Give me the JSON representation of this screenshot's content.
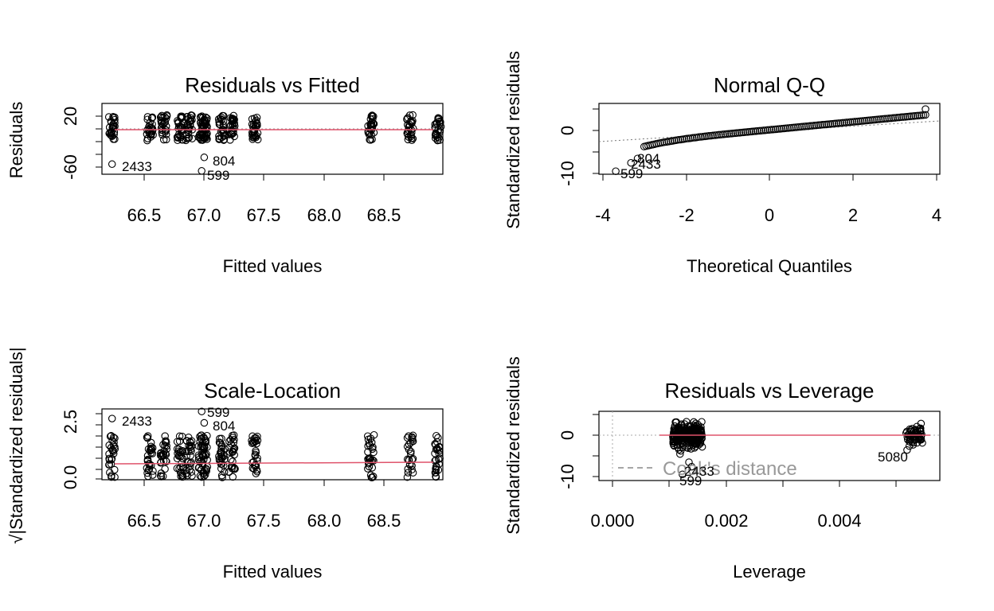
{
  "chart_data": [
    {
      "type": "scatter",
      "title": "Residuals vs Fitted",
      "xlabel": "Fitted values",
      "ylabel": "Residuals",
      "xlim": [
        66.2,
        68.9
      ],
      "ylim": [
        -70,
        35
      ],
      "xticks": [
        "66.5",
        "67.0",
        "67.5",
        "68.0",
        "68.5"
      ],
      "yticks": [
        "-60",
        "20"
      ],
      "columns_x": [
        66.28,
        66.58,
        66.69,
        66.82,
        66.89,
        66.99,
        67.01,
        67.15,
        67.23,
        67.41,
        68.33,
        68.64,
        68.86
      ],
      "point_spread_y": [
        -20,
        18
      ],
      "outliers": [
        {
          "x": 66.28,
          "y": -55,
          "label": "2433"
        },
        {
          "x": 67.01,
          "y": -45,
          "label": "804"
        },
        {
          "x": 66.99,
          "y": -65,
          "label": "599"
        }
      ],
      "smooth_line": [
        [
          66.28,
          2
        ],
        [
          67.0,
          2.2
        ],
        [
          68.0,
          1.8
        ],
        [
          68.86,
          1.8
        ]
      ]
    },
    {
      "type": "scatter",
      "title": "Normal Q-Q",
      "xlabel": "Theoretical Quantiles",
      "ylabel": "Standardized residuals",
      "xlim": [
        -4.2,
        4.1
      ],
      "ylim": [
        -10.2,
        6
      ],
      "xticks": [
        "-4",
        "-2",
        "0",
        "2",
        "4"
      ],
      "yticks": [
        "-10",
        "0"
      ],
      "outliers": [
        {
          "x": -3.79,
          "y": -9.5,
          "label": "599"
        },
        {
          "x": -3.42,
          "y": -7.6,
          "label": "2433"
        },
        {
          "x": -3.26,
          "y": -6.6,
          "label": "804"
        }
      ],
      "reference_line": [
        [
          -4.2,
          -2.6
        ],
        [
          4.1,
          2.5
        ]
      ]
    },
    {
      "type": "scatter",
      "title": "Scale-Location",
      "xlabel": "Fitted values",
      "ylabel": "√|Standardized residuals|",
      "xlim": [
        66.2,
        68.9
      ],
      "ylim": [
        -0.1,
        3.2
      ],
      "xticks": [
        "66.5",
        "67.0",
        "67.5",
        "68.0",
        "68.5"
      ],
      "yticks": [
        "0.0",
        "2.5"
      ],
      "outliers": [
        {
          "x": 66.28,
          "y": 2.75,
          "label": "2433"
        },
        {
          "x": 66.99,
          "y": 3.08,
          "label": "599"
        },
        {
          "x": 67.01,
          "y": 2.55,
          "label": "804"
        }
      ],
      "smooth_line": [
        [
          66.28,
          0.8
        ],
        [
          67.0,
          0.8
        ],
        [
          68.0,
          0.82
        ],
        [
          68.86,
          0.82
        ]
      ]
    },
    {
      "type": "scatter",
      "title": "Residuals vs Leverage",
      "xlabel": "Leverage",
      "ylabel": "Standardized residuals",
      "xlim": [
        -0.00045,
        0.0058
      ],
      "ylim": [
        -11,
        6
      ],
      "xticks": [
        "0.000",
        "0.002",
        "0.004"
      ],
      "yticks": [
        "-10",
        "0"
      ],
      "legend": "Cook's distance",
      "outliers": [
        {
          "x": 0.00108,
          "y": -9.5,
          "label": "599"
        },
        {
          "x": 0.00125,
          "y": -7.6,
          "label": "2433"
        },
        {
          "x": 0.0052,
          "y": -3.5,
          "label": "5080"
        }
      ]
    }
  ]
}
